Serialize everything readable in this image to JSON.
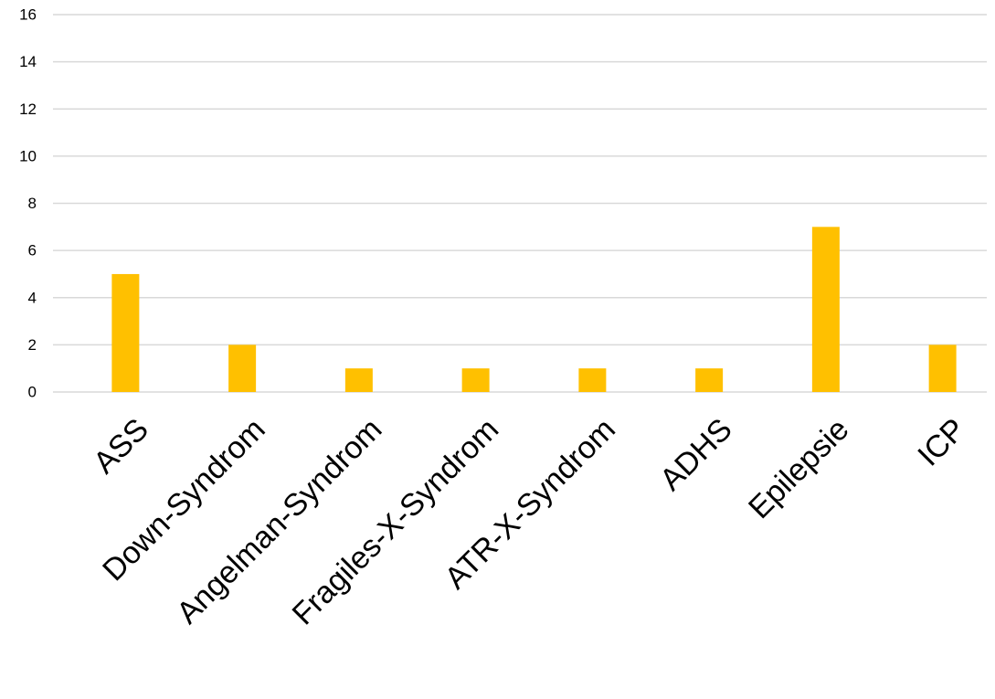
{
  "chart_data": {
    "type": "bar",
    "categories": [
      "ASS",
      "Down-Syndrom",
      "Angelman-Syndrom",
      "Fragiles-X-Syndrom",
      "ATR-X-Syndrom",
      "ADHS",
      "Epilepsie",
      "ICP"
    ],
    "values": [
      5,
      2,
      1,
      1,
      1,
      1,
      7,
      2
    ],
    "title": "",
    "xlabel": "",
    "ylabel": "",
    "ylim": [
      0,
      16
    ],
    "yticks": [
      0,
      2,
      4,
      6,
      8,
      10,
      12,
      14,
      16
    ],
    "grid": true,
    "bar_color": "#FFC000",
    "grid_color": "#D9D9D9"
  }
}
